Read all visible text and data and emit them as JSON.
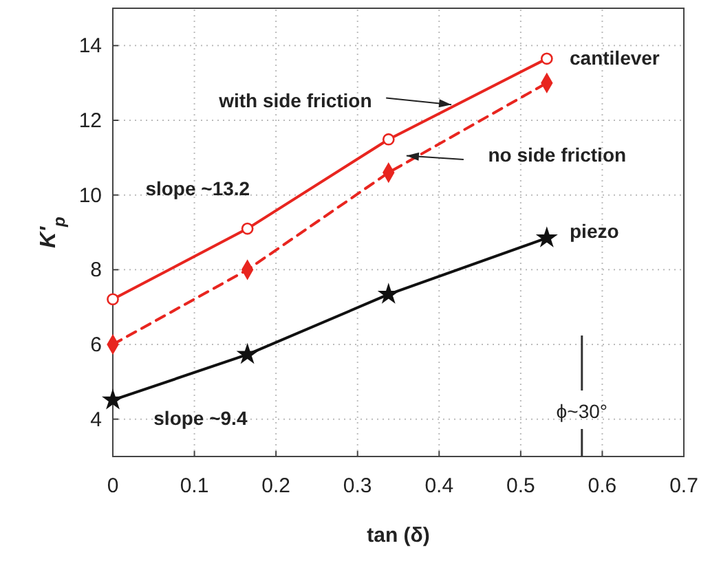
{
  "chart_data": {
    "type": "line",
    "xlabel": "tan (δ)",
    "ylabel": "K'$_{p}$",
    "x": [
      0,
      0.165,
      0.338,
      0.532
    ],
    "series": [
      {
        "name": "with side friction",
        "color": "#e8251f",
        "values": [
          7.21,
          9.1,
          11.49,
          13.65
        ],
        "marker": "circle",
        "line_style": "solid"
      },
      {
        "name": "no side friction",
        "color": "#e8251f",
        "values": [
          6.0,
          8.0,
          10.6,
          13.0
        ],
        "marker": "diamond",
        "line_style": "dashed"
      },
      {
        "name": "piezo",
        "color": "#111111",
        "values": [
          4.51,
          5.73,
          7.34,
          8.85
        ],
        "marker": "star",
        "line_style": "solid"
      }
    ],
    "xlim": [
      0,
      0.7
    ],
    "xticks": [
      0,
      0.1,
      0.2,
      0.3,
      0.4,
      0.5,
      0.6,
      0.7
    ],
    "ylim": [
      3,
      15
    ],
    "yticks": [
      4,
      6,
      8,
      10,
      12,
      14
    ],
    "grid": true,
    "ref_lines": [
      {
        "axis": "x",
        "value": 0.575,
        "label": "ϕ~30°",
        "color": "#333333"
      }
    ],
    "annotations": [
      "cantilever",
      "slope ~13.2",
      "slope ~9.4"
    ]
  }
}
